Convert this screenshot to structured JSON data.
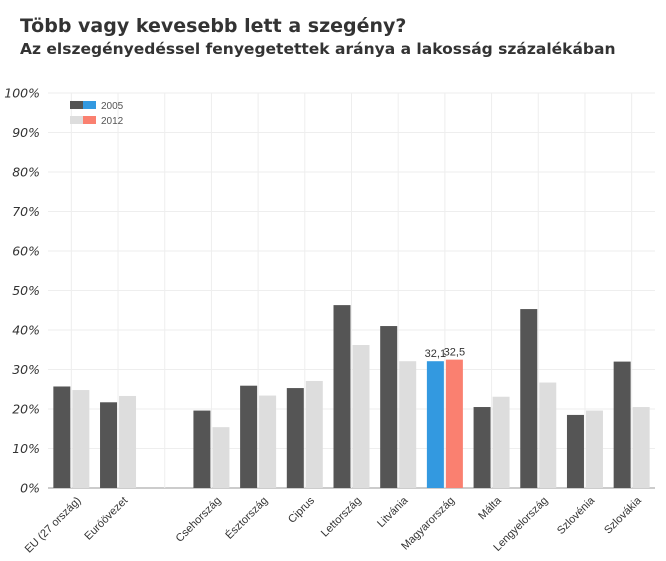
{
  "chart_data": {
    "type": "bar",
    "title": "Több vagy kevesebb lett a szegény?",
    "subtitle": "Az elszegényedéssel fenyegetettek aránya a lakosság százalékában",
    "categories": [
      "EU (27 ország)",
      "Euróövezet",
      "",
      "Csehország",
      "Észtország",
      "Ciprus",
      "Lettország",
      "Litvánia",
      "Magyarország",
      "Málta",
      "Lengyelország",
      "Szlovénia",
      "Szlovákia"
    ],
    "series": [
      {
        "name": "2005",
        "values": [
          25.7,
          21.7,
          null,
          19.6,
          25.9,
          25.3,
          46.3,
          41.0,
          32.1,
          20.5,
          45.3,
          18.5,
          32.0
        ]
      },
      {
        "name": "2012",
        "values": [
          24.8,
          23.3,
          null,
          15.4,
          23.4,
          27.1,
          36.2,
          32.1,
          32.5,
          23.1,
          26.7,
          19.6,
          20.5
        ]
      }
    ],
    "highlight": {
      "category": "Magyarország",
      "labels": [
        "32,1",
        "32,5"
      ]
    },
    "ylim": [
      0,
      100
    ],
    "yticks": [
      "0%",
      "10%",
      "20%",
      "30%",
      "40%",
      "50%",
      "60%",
      "70%",
      "80%",
      "90%",
      "100%"
    ],
    "grid": true,
    "legend_position": "top-left",
    "colors": {
      "series_2005": "#555555",
      "series_2012": "#dddddd",
      "highlight_2005": "#3399e0",
      "highlight_2012": "#fa8070",
      "grid": "#eeeeee",
      "axis": "#bbbbbb"
    }
  }
}
